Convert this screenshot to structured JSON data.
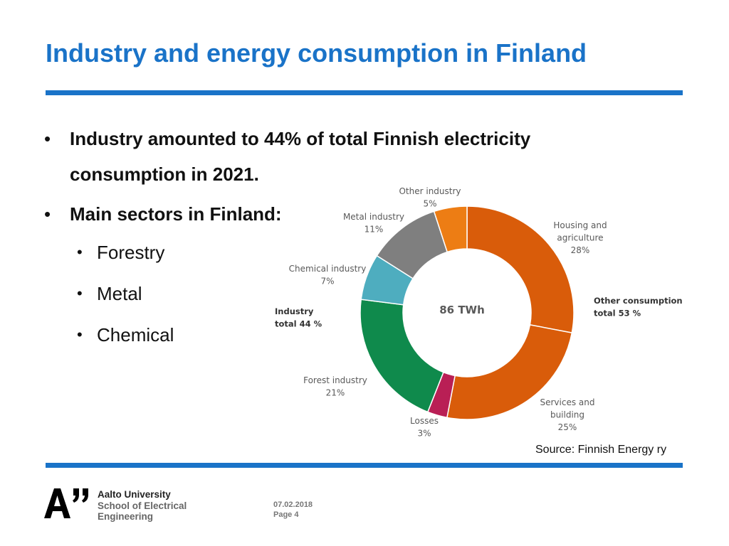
{
  "title": "Industry and energy consumption in Finland",
  "bullets": {
    "b1": "Industry amounted to 44% of total Finnish electricity consumption in 2021.",
    "b2": "Main sectors in Finland:",
    "sectors": [
      "Forestry",
      "Metal",
      "Chemical"
    ]
  },
  "colors": {
    "accent": "#1a73c8"
  },
  "chart_data": {
    "type": "pie",
    "title": "",
    "center_label": "86 TWh",
    "slices": [
      {
        "name": "Housing and agriculture",
        "value": 28,
        "color": "#d95c0a",
        "label_lines": [
          "Housing and",
          "agriculture",
          "28%"
        ]
      },
      {
        "name": "Services and building",
        "value": 25,
        "color": "#d95c0a",
        "label_lines": [
          "Services and",
          "building",
          "25%"
        ]
      },
      {
        "name": "Losses",
        "value": 3,
        "color": "#b91f55",
        "label_lines": [
          "Losses",
          "3%"
        ]
      },
      {
        "name": "Forest industry",
        "value": 21,
        "color": "#0f8a4c",
        "label_lines": [
          "Forest industry",
          "21%"
        ]
      },
      {
        "name": "Chemical industry",
        "value": 7,
        "color": "#4eadbf",
        "label_lines": [
          "Chemical industry",
          "7%"
        ]
      },
      {
        "name": "Metal industry",
        "value": 11,
        "color": "#7f7f7f",
        "label_lines": [
          "Metal industry",
          "11%"
        ]
      },
      {
        "name": "Other industry",
        "value": 5,
        "color": "#ed7d14",
        "label_lines": [
          "Other industry",
          "5%"
        ]
      }
    ],
    "group_labels": [
      {
        "name": "Industry",
        "lines": [
          "Industry",
          "total 44 %"
        ]
      },
      {
        "name": "Other consumption",
        "lines": [
          "Other consumption",
          "total 53 %"
        ]
      }
    ]
  },
  "source": "Source: Finnish Energy ry",
  "footer": {
    "university": [
      "Aalto University",
      "School of Electrical",
      "Engineering"
    ],
    "date": "07.02.2018",
    "page": "Page 4"
  }
}
